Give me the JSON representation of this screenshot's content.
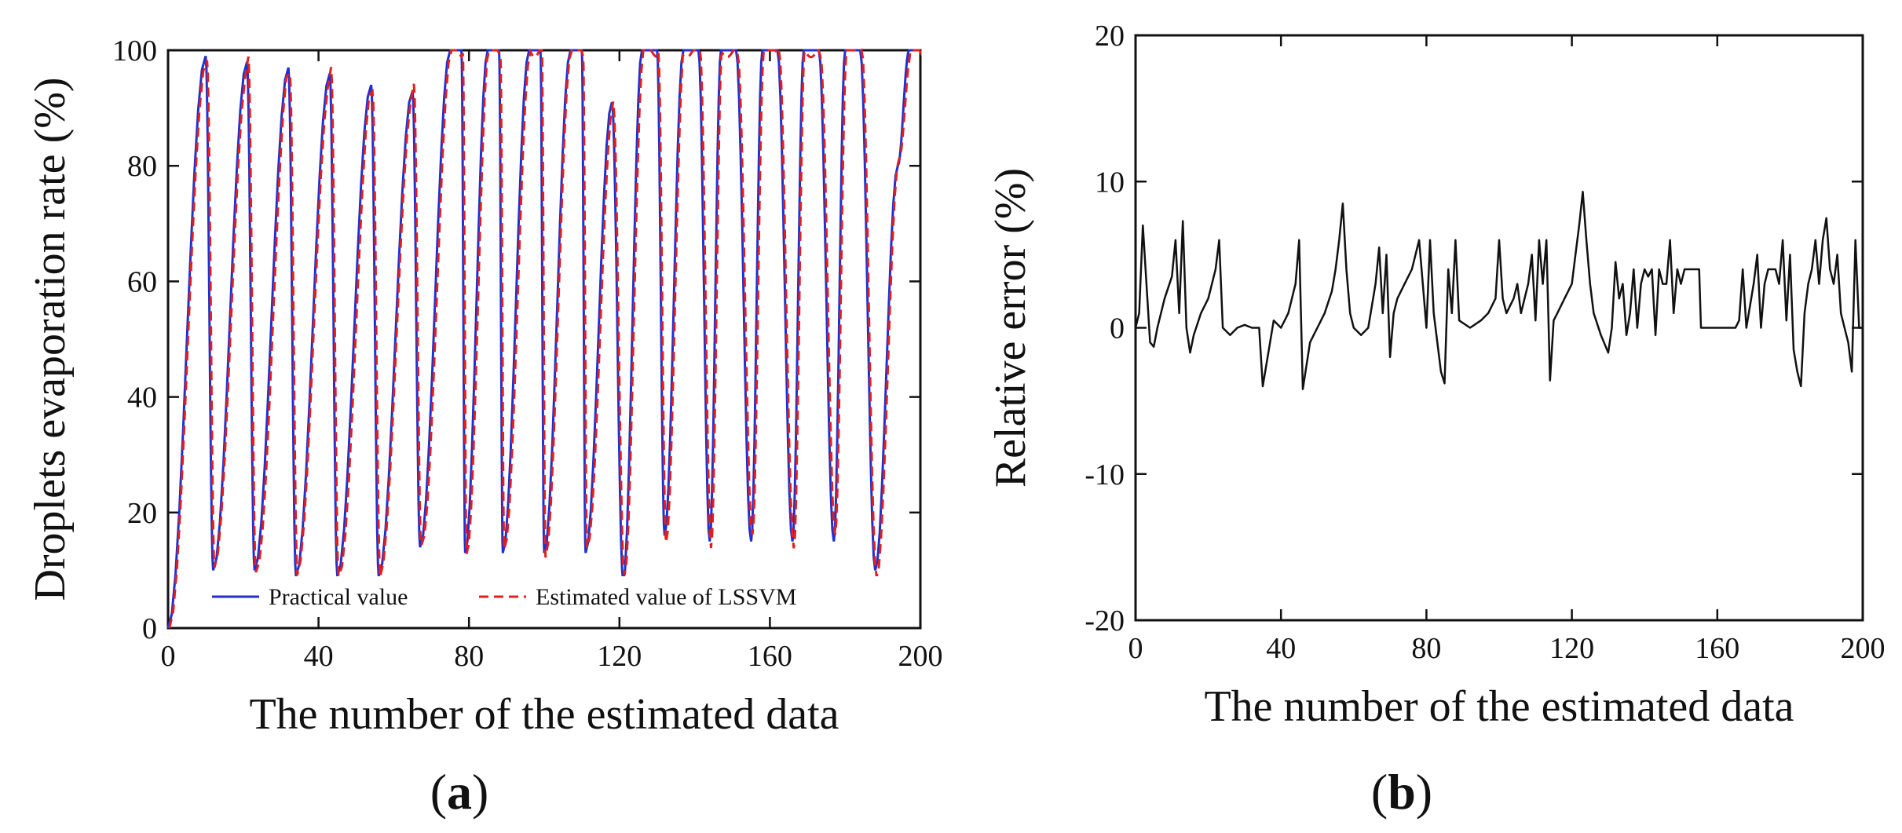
{
  "chart_data": [
    {
      "id": "a",
      "type": "line",
      "panel_label": "a",
      "title": "",
      "xlabel": "The number of the estimated data",
      "ylabel": "Droplets evaporation rate (%)",
      "xlim": [
        0,
        200
      ],
      "ylim": [
        0,
        100
      ],
      "xticks": [
        0,
        40,
        80,
        120,
        160,
        200
      ],
      "yticks": [
        0,
        20,
        40,
        60,
        80,
        100
      ],
      "grid": false,
      "legend_position": "bottom",
      "peaks": [
        [
          0,
          0
        ],
        [
          10,
          99
        ],
        [
          12,
          10
        ],
        [
          21,
          98
        ],
        [
          23,
          10
        ],
        [
          32,
          97
        ],
        [
          34,
          9
        ],
        [
          43,
          96
        ],
        [
          45,
          9
        ],
        [
          54,
          94
        ],
        [
          56,
          9
        ],
        [
          65,
          93
        ],
        [
          67,
          14
        ],
        [
          75,
          100
        ],
        [
          78,
          100
        ],
        [
          79,
          13
        ],
        [
          85,
          100
        ],
        [
          88,
          100
        ],
        [
          89,
          13
        ],
        [
          96,
          100
        ],
        [
          99,
          100
        ],
        [
          100,
          13
        ],
        [
          107,
          100
        ],
        [
          110,
          100
        ],
        [
          111,
          13
        ],
        [
          118,
          91
        ],
        [
          121,
          8
        ],
        [
          126,
          100
        ],
        [
          130,
          100
        ],
        [
          132,
          16
        ],
        [
          137,
          100
        ],
        [
          141,
          100
        ],
        [
          144,
          15
        ],
        [
          147,
          100
        ],
        [
          151,
          100
        ],
        [
          155,
          15
        ],
        [
          158,
          100
        ],
        [
          162,
          100
        ],
        [
          166,
          15
        ],
        [
          169,
          100
        ],
        [
          173,
          100
        ],
        [
          177,
          15
        ],
        [
          180,
          100
        ],
        [
          184,
          100
        ],
        [
          188,
          10
        ],
        [
          194,
          80
        ],
        [
          197,
          100
        ],
        [
          200,
          100
        ]
      ],
      "series": [
        {
          "name": "Practical value",
          "color": "#1f2fd0",
          "dash": "solid"
        },
        {
          "name": "Estimated value of LSSVM",
          "color": "#e02020",
          "dash": "dashed"
        }
      ]
    },
    {
      "id": "b",
      "type": "line",
      "panel_label": "b",
      "title": "",
      "xlabel": "The number of the estimated data",
      "ylabel": "Relative error (%)",
      "xlim": [
        0,
        200
      ],
      "ylim": [
        -20,
        20
      ],
      "xticks": [
        0,
        40,
        80,
        120,
        160,
        200
      ],
      "yticks": [
        -20,
        -10,
        0,
        10,
        20
      ],
      "grid": false,
      "series": [
        {
          "name": "Relative error",
          "color": "#111111",
          "points": [
            [
              0,
              0
            ],
            [
              1,
              1
            ],
            [
              2,
              7
            ],
            [
              3,
              3
            ],
            [
              4,
              -1
            ],
            [
              5,
              -1.3
            ],
            [
              6,
              0
            ],
            [
              8,
              2
            ],
            [
              10,
              3.5
            ],
            [
              11,
              6
            ],
            [
              12,
              1
            ],
            [
              13,
              7.3
            ],
            [
              14,
              0
            ],
            [
              15,
              -1.7
            ],
            [
              16,
              -0.5
            ],
            [
              18,
              1
            ],
            [
              20,
              2
            ],
            [
              22,
              4
            ],
            [
              23,
              6
            ],
            [
              24,
              0
            ],
            [
              26,
              -0.5
            ],
            [
              28,
              0
            ],
            [
              30,
              0.2
            ],
            [
              32,
              0
            ],
            [
              34,
              0
            ],
            [
              35,
              -4
            ],
            [
              37,
              -1
            ],
            [
              38,
              0.5
            ],
            [
              40,
              0
            ],
            [
              42,
              1
            ],
            [
              44,
              3
            ],
            [
              45,
              6
            ],
            [
              46,
              -4.2
            ],
            [
              48,
              -1
            ],
            [
              50,
              0
            ],
            [
              52,
              1
            ],
            [
              54,
              2.5
            ],
            [
              55,
              4
            ],
            [
              56,
              6
            ],
            [
              57,
              8.5
            ],
            [
              58,
              4
            ],
            [
              59,
              1
            ],
            [
              60,
              0
            ],
            [
              62,
              -0.5
            ],
            [
              64,
              0
            ],
            [
              66,
              3
            ],
            [
              67,
              5.5
            ],
            [
              68,
              1
            ],
            [
              69,
              5
            ],
            [
              70,
              -2
            ],
            [
              71,
              1
            ],
            [
              72,
              2
            ],
            [
              74,
              3
            ],
            [
              76,
              4
            ],
            [
              78,
              6
            ],
            [
              79,
              3
            ],
            [
              80,
              0
            ],
            [
              81,
              6
            ],
            [
              82,
              1
            ],
            [
              84,
              -3
            ],
            [
              85,
              -3.8
            ],
            [
              86,
              4
            ],
            [
              87,
              1
            ],
            [
              88,
              6
            ],
            [
              89,
              0.5
            ],
            [
              92,
              0
            ],
            [
              95,
              0.5
            ],
            [
              97,
              1
            ],
            [
              99,
              2
            ],
            [
              100,
              6
            ],
            [
              101,
              2
            ],
            [
              102,
              1
            ],
            [
              104,
              2
            ],
            [
              105,
              3
            ],
            [
              106,
              1
            ],
            [
              107,
              2
            ],
            [
              108,
              3
            ],
            [
              109,
              5
            ],
            [
              110,
              0.5
            ],
            [
              111,
              6
            ],
            [
              112,
              3
            ],
            [
              113,
              6
            ],
            [
              114,
              -3.6
            ],
            [
              115,
              0.5
            ],
            [
              116,
              1
            ],
            [
              118,
              2
            ],
            [
              120,
              3
            ],
            [
              121,
              5
            ],
            [
              122,
              7
            ],
            [
              123,
              9.3
            ],
            [
              124,
              6
            ],
            [
              125,
              3
            ],
            [
              126,
              1
            ],
            [
              128,
              -0.5
            ],
            [
              130,
              -1.7
            ],
            [
              131,
              0
            ],
            [
              132,
              4.5
            ],
            [
              133,
              2
            ],
            [
              134,
              3
            ],
            [
              135,
              -0.5
            ],
            [
              136,
              1
            ],
            [
              137,
              4
            ],
            [
              138,
              0
            ],
            [
              139,
              3
            ],
            [
              140,
              4
            ],
            [
              141,
              3.5
            ],
            [
              142,
              4
            ],
            [
              143,
              -0.5
            ],
            [
              144,
              4
            ],
            [
              145,
              3
            ],
            [
              146,
              3
            ],
            [
              147,
              6
            ],
            [
              148,
              1
            ],
            [
              149,
              4
            ],
            [
              150,
              3
            ],
            [
              151,
              4
            ],
            [
              152,
              4
            ],
            [
              153,
              4
            ],
            [
              154,
              4
            ],
            [
              155,
              4
            ],
            [
              155.5,
              0
            ],
            [
              160,
              0
            ],
            [
              165,
              0
            ],
            [
              166,
              0.5
            ],
            [
              167,
              4
            ],
            [
              168,
              0
            ],
            [
              170,
              3
            ],
            [
              171,
              5
            ],
            [
              172,
              0
            ],
            [
              173,
              3
            ],
            [
              174,
              4
            ],
            [
              176,
              4
            ],
            [
              177,
              3
            ],
            [
              178,
              6
            ],
            [
              179,
              0.5
            ],
            [
              180,
              5
            ],
            [
              181,
              -1.5
            ],
            [
              182,
              -3
            ],
            [
              183,
              -4
            ],
            [
              184,
              1
            ],
            [
              185,
              3
            ],
            [
              186,
              4
            ],
            [
              187,
              6
            ],
            [
              188,
              3
            ],
            [
              189,
              6
            ],
            [
              190,
              7.5
            ],
            [
              191,
              4
            ],
            [
              192,
              3
            ],
            [
              193,
              5
            ],
            [
              194,
              1
            ],
            [
              195,
              0
            ],
            [
              196,
              -1
            ],
            [
              197,
              -3
            ],
            [
              198,
              6
            ],
            [
              199,
              0
            ],
            [
              200,
              0
            ]
          ]
        }
      ]
    }
  ]
}
